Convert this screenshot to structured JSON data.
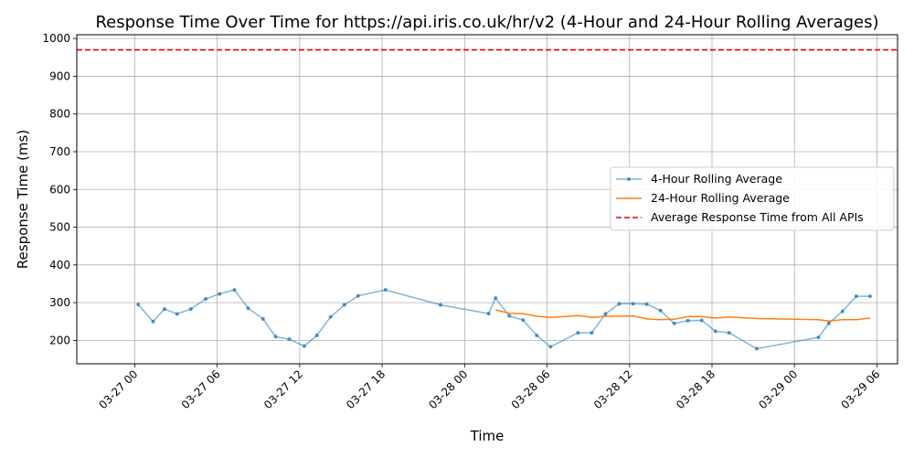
{
  "chart_data": {
    "type": "line",
    "title": "Response Time Over Time for https://api.iris.co.uk/hr/v2 (4-Hour and 24-Hour Rolling Averages)",
    "xlabel": "Time",
    "ylabel": "Response Time (ms)",
    "xlim": [
      "2024-03-26 19:47",
      "2024-03-29 07:30"
    ],
    "ylim": [
      138,
      1010
    ],
    "x_ticks": [
      {
        "t": "2024-03-27 00:00",
        "label": "03-27 00"
      },
      {
        "t": "2024-03-27 06:00",
        "label": "03-27 06"
      },
      {
        "t": "2024-03-27 12:00",
        "label": "03-27 12"
      },
      {
        "t": "2024-03-27 18:00",
        "label": "03-27 18"
      },
      {
        "t": "2024-03-28 00:00",
        "label": "03-28 00"
      },
      {
        "t": "2024-03-28 06:00",
        "label": "03-28 06"
      },
      {
        "t": "2024-03-28 12:00",
        "label": "03-28 12"
      },
      {
        "t": "2024-03-28 18:00",
        "label": "03-28 18"
      },
      {
        "t": "2024-03-29 00:00",
        "label": "03-29 00"
      },
      {
        "t": "2024-03-29 06:00",
        "label": "03-29 06"
      }
    ],
    "y_ticks": [
      200,
      300,
      400,
      500,
      600,
      700,
      800,
      900,
      1000
    ],
    "grid": true,
    "legend_position": "center-right",
    "series": [
      {
        "name": "4-Hour Rolling Average",
        "color": "#1f77b4",
        "marker": "dot",
        "points": [
          [
            "2024-03-27 00:15",
            295
          ],
          [
            "2024-03-27 01:20",
            250
          ],
          [
            "2024-03-27 02:10",
            283
          ],
          [
            "2024-03-27 03:05",
            270
          ],
          [
            "2024-03-27 04:05",
            283
          ],
          [
            "2024-03-27 05:10",
            310
          ],
          [
            "2024-03-27 06:10",
            323
          ],
          [
            "2024-03-27 07:15",
            334
          ],
          [
            "2024-03-27 08:15",
            285
          ],
          [
            "2024-03-27 09:20",
            257
          ],
          [
            "2024-03-27 10:15",
            210
          ],
          [
            "2024-03-27 11:15",
            203
          ],
          [
            "2024-03-27 12:20",
            185
          ],
          [
            "2024-03-27 13:15",
            213
          ],
          [
            "2024-03-27 14:15",
            262
          ],
          [
            "2024-03-27 15:15",
            294
          ],
          [
            "2024-03-27 16:15",
            318
          ],
          [
            "2024-03-27 18:15",
            334
          ],
          [
            "2024-03-27 22:15",
            294
          ],
          [
            "2024-03-28 01:45",
            271
          ],
          [
            "2024-03-28 02:15",
            312
          ],
          [
            "2024-03-28 03:15",
            265
          ],
          [
            "2024-03-28 04:15",
            254
          ],
          [
            "2024-03-28 05:15",
            213
          ],
          [
            "2024-03-28 06:15",
            183
          ],
          [
            "2024-03-28 08:15",
            220
          ],
          [
            "2024-03-28 09:15",
            220
          ],
          [
            "2024-03-28 10:15",
            270
          ],
          [
            "2024-03-28 11:15",
            297
          ],
          [
            "2024-03-28 12:15",
            297
          ],
          [
            "2024-03-28 13:15",
            296
          ],
          [
            "2024-03-28 14:15",
            279
          ],
          [
            "2024-03-28 15:15",
            245
          ],
          [
            "2024-03-28 16:15",
            252
          ],
          [
            "2024-03-28 17:15",
            253
          ],
          [
            "2024-03-28 18:15",
            224
          ],
          [
            "2024-03-28 19:15",
            220
          ],
          [
            "2024-03-28 21:15",
            178
          ],
          [
            "2024-03-29 01:45",
            208
          ],
          [
            "2024-03-29 02:30",
            245
          ],
          [
            "2024-03-29 03:30",
            277
          ],
          [
            "2024-03-29 04:30",
            317
          ],
          [
            "2024-03-29 05:30",
            317
          ]
        ]
      },
      {
        "name": "24-Hour Rolling Average",
        "color": "#ff7f0e",
        "marker": "none",
        "points": [
          [
            "2024-03-28 02:15",
            281
          ],
          [
            "2024-03-28 03:15",
            272
          ],
          [
            "2024-03-28 04:15",
            271
          ],
          [
            "2024-03-28 05:15",
            264
          ],
          [
            "2024-03-28 06:15",
            261
          ],
          [
            "2024-03-28 07:15",
            263
          ],
          [
            "2024-03-28 08:15",
            266
          ],
          [
            "2024-03-28 09:15",
            261
          ],
          [
            "2024-03-28 10:15",
            264
          ],
          [
            "2024-03-28 11:15",
            264
          ],
          [
            "2024-03-28 12:15",
            265
          ],
          [
            "2024-03-28 13:15",
            257
          ],
          [
            "2024-03-28 14:15",
            255
          ],
          [
            "2024-03-28 15:15",
            256
          ],
          [
            "2024-03-28 16:15",
            263
          ],
          [
            "2024-03-28 17:15",
            263
          ],
          [
            "2024-03-28 18:15",
            259
          ],
          [
            "2024-03-28 19:15",
            262
          ],
          [
            "2024-03-28 21:15",
            258
          ],
          [
            "2024-03-29 01:45",
            255
          ],
          [
            "2024-03-29 02:30",
            251
          ],
          [
            "2024-03-29 03:30",
            255
          ],
          [
            "2024-03-29 04:30",
            255
          ],
          [
            "2024-03-29 05:30",
            259
          ]
        ]
      }
    ],
    "reference_lines": [
      {
        "name": "Average Response Time from All APIs",
        "y": 970,
        "color": "#e8000b",
        "style": "dashed"
      }
    ]
  }
}
